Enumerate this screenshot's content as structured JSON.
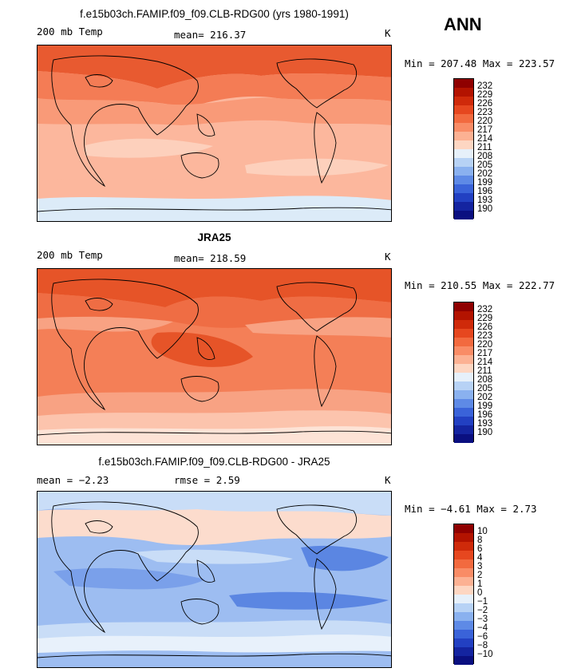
{
  "season_label": "ANN",
  "chart_data": [
    {
      "type": "heatmap",
      "title": "f.e15b03ch.FAMIP.f09_f09.CLB-RDG00 (yrs 1980-1991)",
      "left_label": "200 mb Temp",
      "center_label": "mean=",
      "center_value": "216.37",
      "right_label": "K",
      "minmax_text": "Min = 207.48 Max = 223.57",
      "min": 207.48,
      "max": 223.57,
      "mean": 216.37,
      "units": "K",
      "colorbar": {
        "labels": [
          "232",
          "229",
          "226",
          "223",
          "220",
          "217",
          "214",
          "211",
          "208",
          "205",
          "202",
          "199",
          "196",
          "193",
          "190"
        ],
        "colors": [
          "#8f0000",
          "#b31300",
          "#cf2a0a",
          "#e6471f",
          "#f26a3f",
          "#f98c66",
          "#fcb193",
          "#fdd6c2",
          "#e6f0fa",
          "#b7d2f5",
          "#8ab1ef",
          "#5e8ae6",
          "#3a63d9",
          "#2240c2",
          "#1424a0",
          "#0a0f80"
        ],
        "field_colors": [
          "#e85a30",
          "#f47c55",
          "#f99a78",
          "#fcb79d",
          "#fdd0bc",
          "#dcebf8"
        ]
      }
    },
    {
      "type": "heatmap",
      "title": "JRA25",
      "left_label": "200 mb Temp",
      "center_label": "mean=",
      "center_value": "218.59",
      "right_label": "K",
      "minmax_text": "Min = 210.55 Max = 222.77",
      "min": 210.55,
      "max": 222.77,
      "mean": 218.59,
      "units": "K",
      "colorbar": {
        "labels": [
          "232",
          "229",
          "226",
          "223",
          "220",
          "217",
          "214",
          "211",
          "208",
          "205",
          "202",
          "199",
          "196",
          "193",
          "190"
        ],
        "colors": [
          "#8f0000",
          "#b31300",
          "#cf2a0a",
          "#e6471f",
          "#f26a3f",
          "#f98c66",
          "#fcb193",
          "#fdd6c2",
          "#e6f0fa",
          "#b7d2f5",
          "#8ab1ef",
          "#5e8ae6",
          "#3a63d9",
          "#2240c2",
          "#1424a0",
          "#0a0f80"
        ],
        "field_colors": [
          "#e65428",
          "#ef6d44",
          "#f47f57",
          "#f8a283",
          "#fcc4ad",
          "#fde3d6"
        ]
      }
    },
    {
      "type": "heatmap",
      "title": "f.e15b03ch.FAMIP.f09_f09.CLB-RDG00 - JRA25",
      "left_label": "mean =",
      "left_value": "−2.23",
      "center_label": "rmse =",
      "center_value": "2.59",
      "right_label": "K",
      "minmax_text": "Min =  −4.61 Max =   2.73",
      "min": -4.61,
      "max": 2.73,
      "mean": -2.23,
      "rmse": 2.59,
      "units": "K",
      "colorbar": {
        "labels": [
          "10",
          "8",
          "6",
          "4",
          "3",
          "2",
          "1",
          "0",
          "−1",
          "−2",
          "−3",
          "−4",
          "−6",
          "−8",
          "−10"
        ],
        "colors": [
          "#8f0000",
          "#b31300",
          "#cf2a0a",
          "#e6471f",
          "#f26a3f",
          "#f98c66",
          "#fcb193",
          "#fdd6c2",
          "#e6f0fa",
          "#b7d2f5",
          "#8ab1ef",
          "#5e8ae6",
          "#3a63d9",
          "#2240c2",
          "#1424a0",
          "#0a0f80"
        ],
        "field_colors": [
          "#fcdccd",
          "#c9ddf7",
          "#9dbdf1",
          "#7aa0ea",
          "#5b86e2",
          "#e8f1fb"
        ]
      }
    }
  ]
}
